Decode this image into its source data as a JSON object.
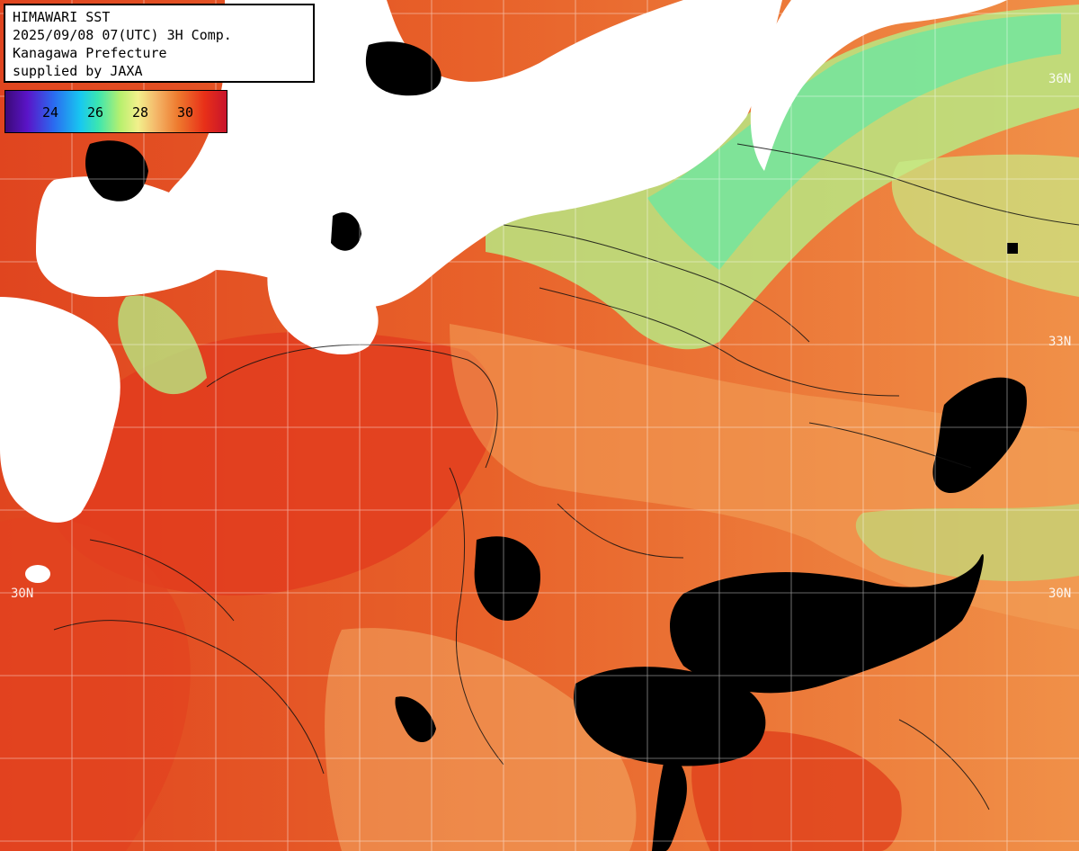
{
  "header": {
    "lines": [
      "HIMAWARI SST",
      "2025/09/08 07(UTC) 3H Comp.",
      "Kanagawa Prefecture",
      "supplied by JAXA"
    ]
  },
  "colorbar": {
    "ticks": [
      "24",
      "26",
      "28",
      "30"
    ]
  },
  "lat_labels": [
    "36N",
    "33N",
    "30N",
    "30N"
  ],
  "colors": {
    "land": "#ffffff",
    "cloud": "#000000",
    "warm": "#e5602a",
    "hot": "#e23a1e",
    "mild": "#f3a25a",
    "cool": "#b8e882",
    "cooler": "#6ee6a0",
    "grid": "#ffffff"
  }
}
